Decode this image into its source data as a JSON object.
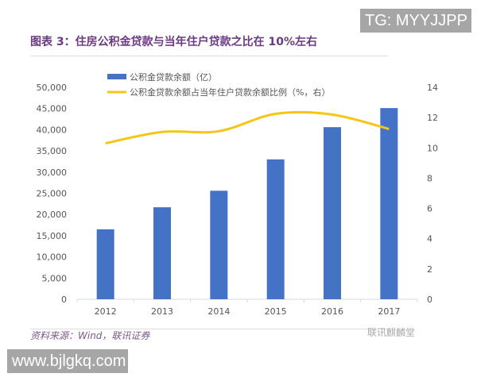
{
  "watermark_top": "TG: MYYJJPP",
  "watermark_bottom": "www.bjlgkq.com",
  "title": "图表 3：住房公积金贷款与当年住户贷款之比在 10%左右",
  "source": "资料来源：Wind，联讯证券",
  "brand": "联讯麒麟堂",
  "chart_data": {
    "type": "bar+line",
    "categories": [
      "2012",
      "2013",
      "2014",
      "2015",
      "2016",
      "2017"
    ],
    "series": [
      {
        "name": "公积金贷款余额（亿）",
        "type": "bar",
        "axis": "left",
        "color": "#4472c4",
        "values": [
          16500,
          21700,
          25600,
          33000,
          40600,
          45100
        ]
      },
      {
        "name": "公积金贷款余额占当年住户贷款余额比例（%，右）",
        "type": "line",
        "axis": "right",
        "color": "#f5c518",
        "values": [
          10.3,
          11.05,
          11.1,
          12.25,
          12.2,
          11.25
        ]
      }
    ],
    "y_left": {
      "range": [
        0,
        50000
      ],
      "ticks": [
        "0",
        "5,000",
        "10,000",
        "15,000",
        "20,000",
        "25,000",
        "30,000",
        "35,000",
        "40,000",
        "45,000",
        "50,000"
      ]
    },
    "y_right": {
      "range": [
        0,
        14
      ],
      "ticks": [
        "0",
        "2",
        "4",
        "6",
        "8",
        "10",
        "12",
        "14"
      ]
    },
    "legend": "top",
    "grid": false
  }
}
